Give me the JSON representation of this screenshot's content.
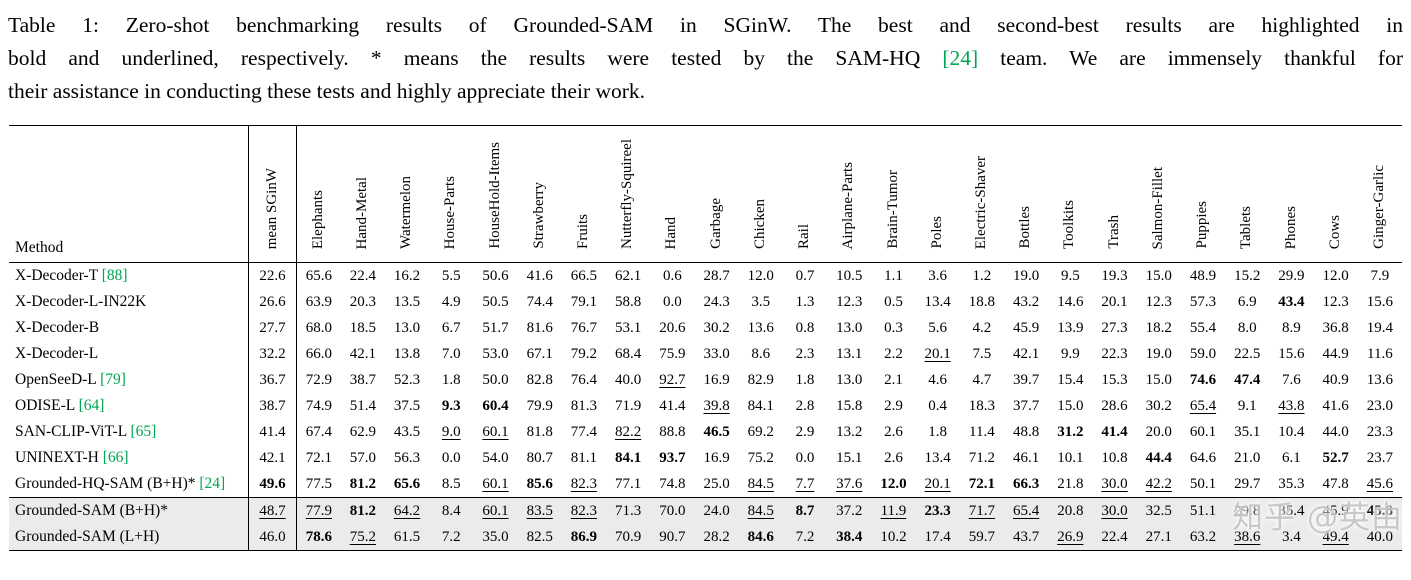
{
  "colors": {
    "citation": "#00a651",
    "highlight_row": "#ebebeb",
    "rule": "#000000"
  },
  "watermark": "知乎 @英由",
  "caption": {
    "line1": "Table 1: Zero-shot benchmarking results of Grounded-SAM in SGinW. The best and second-best results are highlighted in",
    "line2_pre": "bold and underlined, respectively. * means the results were tested by the SAM-HQ ",
    "cite": "[24]",
    "line2_post": " team. We are immensely thankful for",
    "line3": "their assistance in conducting these tests and highly appreciate their work."
  },
  "table": {
    "method_header": "Method",
    "columns": [
      "mean SGinW",
      "Elephants",
      "Hand-Metal",
      "Watermelon",
      "House-Parts",
      "HouseHold-Items",
      "Strawberry",
      "Fruits",
      "Nutterfly-Squireel",
      "Hand",
      "Garbage",
      "Chicken",
      "Rail",
      "Airplane-Parts",
      "Brain-Tumor",
      "Poles",
      "Electric-Shaver",
      "Bottles",
      "Toolkits",
      "Trash",
      "Salmon-Fillet",
      "Puppies",
      "Tablets",
      "Phones",
      "Cows",
      "Ginger-Garlic"
    ],
    "rows": [
      {
        "method": "X-Decoder-T",
        "cite": "[88]",
        "highlight": false,
        "values": [
          "22.6",
          "65.6",
          "22.4",
          "16.2",
          "5.5",
          "50.6",
          "41.6",
          "66.5",
          "62.1",
          "0.6",
          "28.7",
          "12.0",
          "0.7",
          "10.5",
          "1.1",
          "3.6",
          "1.2",
          "19.0",
          "9.5",
          "19.3",
          "15.0",
          "48.9",
          "15.2",
          "29.9",
          "12.0",
          "7.9"
        ],
        "fmt": {}
      },
      {
        "method": "X-Decoder-L-IN22K",
        "highlight": false,
        "values": [
          "26.6",
          "63.9",
          "20.3",
          "13.5",
          "4.9",
          "50.5",
          "74.4",
          "79.1",
          "58.8",
          "0.0",
          "24.3",
          "3.5",
          "1.3",
          "12.3",
          "0.5",
          "13.4",
          "18.8",
          "43.2",
          "14.6",
          "20.1",
          "12.3",
          "57.3",
          "6.9",
          "43.4",
          "12.3",
          "15.6"
        ],
        "fmt": {
          "23": "b"
        }
      },
      {
        "method": "X-Decoder-B",
        "highlight": false,
        "values": [
          "27.7",
          "68.0",
          "18.5",
          "13.0",
          "6.7",
          "51.7",
          "81.6",
          "76.7",
          "53.1",
          "20.6",
          "30.2",
          "13.6",
          "0.8",
          "13.0",
          "0.3",
          "5.6",
          "4.2",
          "45.9",
          "13.9",
          "27.3",
          "18.2",
          "55.4",
          "8.0",
          "8.9",
          "36.8",
          "19.4"
        ],
        "fmt": {}
      },
      {
        "method": "X-Decoder-L",
        "highlight": false,
        "values": [
          "32.2",
          "66.0",
          "42.1",
          "13.8",
          "7.0",
          "53.0",
          "67.1",
          "79.2",
          "68.4",
          "75.9",
          "33.0",
          "8.6",
          "2.3",
          "13.1",
          "2.2",
          "20.1",
          "7.5",
          "42.1",
          "9.9",
          "22.3",
          "19.0",
          "59.0",
          "22.5",
          "15.6",
          "44.9",
          "11.6"
        ],
        "fmt": {
          "15": "u"
        }
      },
      {
        "method": "OpenSeeD-L",
        "cite": "[79]",
        "highlight": false,
        "values": [
          "36.7",
          "72.9",
          "38.7",
          "52.3",
          "1.8",
          "50.0",
          "82.8",
          "76.4",
          "40.0",
          "92.7",
          "16.9",
          "82.9",
          "1.8",
          "13.0",
          "2.1",
          "4.6",
          "4.7",
          "39.7",
          "15.4",
          "15.3",
          "15.0",
          "74.6",
          "47.4",
          "7.6",
          "40.9",
          "13.6"
        ],
        "fmt": {
          "9": "u",
          "21": "b",
          "22": "b"
        }
      },
      {
        "method": "ODISE-L",
        "cite": "[64]",
        "highlight": false,
        "values": [
          "38.7",
          "74.9",
          "51.4",
          "37.5",
          "9.3",
          "60.4",
          "79.9",
          "81.3",
          "71.9",
          "41.4",
          "39.8",
          "84.1",
          "2.8",
          "15.8",
          "2.9",
          "0.4",
          "18.3",
          "37.7",
          "15.0",
          "28.6",
          "30.2",
          "65.4",
          "9.1",
          "43.8",
          "41.6",
          "23.0"
        ],
        "fmt": {
          "4": "b",
          "5": "b",
          "10": "u",
          "21": "u",
          "23": "u"
        }
      },
      {
        "method": "SAN-CLIP-ViT-L",
        "cite": "[65]",
        "highlight": false,
        "values": [
          "41.4",
          "67.4",
          "62.9",
          "43.5",
          "9.0",
          "60.1",
          "81.8",
          "77.4",
          "82.2",
          "88.8",
          "46.5",
          "69.2",
          "2.9",
          "13.2",
          "2.6",
          "1.8",
          "11.4",
          "48.8",
          "31.2",
          "41.4",
          "20.0",
          "60.1",
          "35.1",
          "10.4",
          "44.0",
          "23.3"
        ],
        "fmt": {
          "4": "u",
          "5": "u",
          "8": "u",
          "10": "b",
          "18": "b",
          "19": "b"
        }
      },
      {
        "method": "UNINEXT-H",
        "cite": "[66]",
        "highlight": false,
        "values": [
          "42.1",
          "72.1",
          "57.0",
          "56.3",
          "0.0",
          "54.0",
          "80.7",
          "81.1",
          "84.1",
          "93.7",
          "16.9",
          "75.2",
          "0.0",
          "15.1",
          "2.6",
          "13.4",
          "71.2",
          "46.1",
          "10.1",
          "10.8",
          "44.4",
          "64.6",
          "21.0",
          "6.1",
          "52.7",
          "23.7"
        ],
        "fmt": {
          "8": "b",
          "9": "b",
          "20": "b",
          "24": "b"
        }
      },
      {
        "method": "Grounded-HQ-SAM (B+H)*",
        "cite": "[24]",
        "highlight": false,
        "values": [
          "49.6",
          "77.5",
          "81.2",
          "65.6",
          "8.5",
          "60.1",
          "85.6",
          "82.3",
          "77.1",
          "74.8",
          "25.0",
          "84.5",
          "7.7",
          "37.6",
          "12.0",
          "20.1",
          "72.1",
          "66.3",
          "21.8",
          "30.0",
          "42.2",
          "50.1",
          "29.7",
          "35.3",
          "47.8",
          "45.6"
        ],
        "fmt": {
          "0": "b",
          "2": "b",
          "3": "b",
          "5": "u",
          "6": "b",
          "7": "u",
          "11": "u",
          "12": "u",
          "13": "u",
          "14": "b",
          "15": "u",
          "16": "b",
          "17": "b",
          "19": "u",
          "20": "u",
          "25": "u"
        }
      },
      {
        "method": "Grounded-SAM (B+H)*",
        "highlight": true,
        "rule_above": true,
        "values": [
          "48.7",
          "77.9",
          "81.2",
          "64.2",
          "8.4",
          "60.1",
          "83.5",
          "82.3",
          "71.3",
          "70.0",
          "24.0",
          "84.5",
          "8.7",
          "37.2",
          "11.9",
          "23.3",
          "71.7",
          "65.4",
          "20.8",
          "30.0",
          "32.5",
          "51.1",
          "29.8",
          "35.4",
          "45.9",
          "45.8"
        ],
        "fmt": {
          "0": "u",
          "1": "u",
          "2": "b",
          "3": "u",
          "5": "u",
          "6": "u",
          "7": "u",
          "11": "u",
          "12": "b",
          "14": "u",
          "15": "b",
          "16": "u",
          "17": "u",
          "19": "u",
          "25": "b"
        }
      },
      {
        "method": "Grounded-SAM (L+H)",
        "highlight": true,
        "values": [
          "46.0",
          "78.6",
          "75.2",
          "61.5",
          "7.2",
          "35.0",
          "82.5",
          "86.9",
          "70.9",
          "90.7",
          "28.2",
          "84.6",
          "7.2",
          "38.4",
          "10.2",
          "17.4",
          "59.7",
          "43.7",
          "26.9",
          "22.4",
          "27.1",
          "63.2",
          "38.6",
          "3.4",
          "49.4",
          "40.0"
        ],
        "fmt": {
          "1": "b",
          "2": "u",
          "7": "b",
          "11": "b",
          "13": "b",
          "18": "u",
          "22": "u",
          "24": "u"
        }
      }
    ]
  }
}
